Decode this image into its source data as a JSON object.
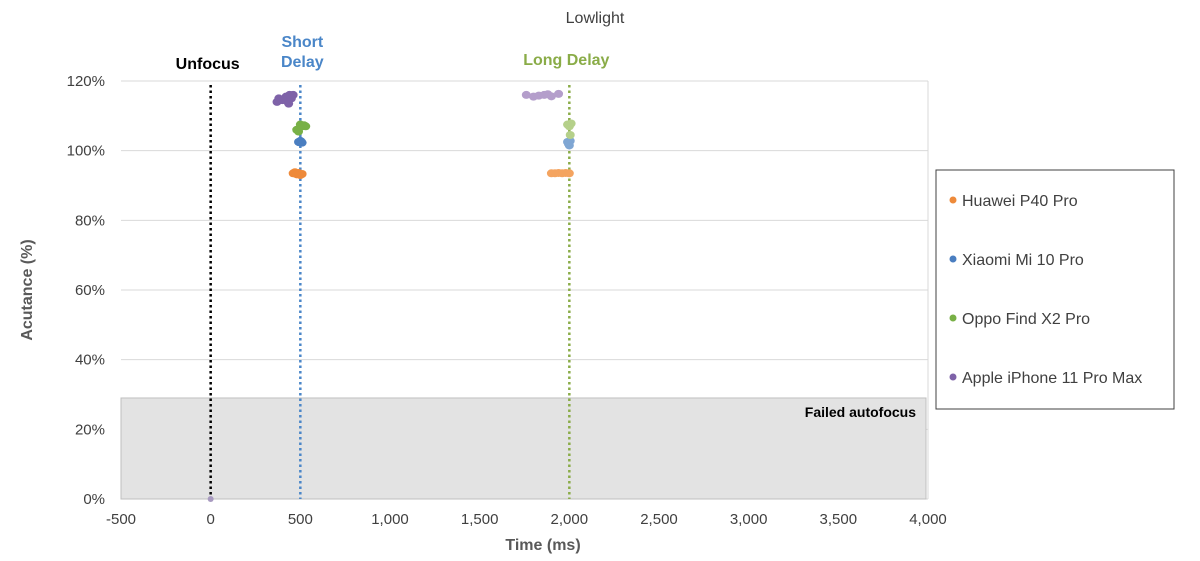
{
  "chart_data": {
    "type": "scatter",
    "title": "Lowlight",
    "xlabel": "Time (ms)",
    "ylabel": "Acutance (%)",
    "xlim": [
      -500,
      4000
    ],
    "ylim": [
      0,
      120
    ],
    "x_ticks": [
      -500,
      0,
      500,
      1000,
      1500,
      2000,
      2500,
      3000,
      3500,
      4000
    ],
    "x_tick_labels": [
      "-500",
      "0",
      "500",
      "1,000",
      "1,500",
      "2,000",
      "2,500",
      "3,000",
      "3,500",
      "4,000"
    ],
    "y_ticks": [
      0,
      20,
      40,
      60,
      80,
      100,
      120
    ],
    "y_tick_labels": [
      "0%",
      "20%",
      "40%",
      "60%",
      "80%",
      "100%",
      "120%"
    ],
    "grid": true,
    "legend_position": "right",
    "reference_lines": [
      {
        "label": "Unfocus",
        "x": 0,
        "color": "#000000"
      },
      {
        "label": "Short Delay",
        "x": 500,
        "color": "#4a86c8"
      },
      {
        "label": "Long Delay",
        "x": 2000,
        "color": "#8aac48"
      }
    ],
    "shaded_region": {
      "label": "Failed autofocus",
      "y_range": [
        0,
        29
      ],
      "color": "#e3e3e3"
    },
    "series": [
      {
        "name": "Huawei P40 Pro",
        "color": "#f4a460",
        "short_color": "#ee8a3a",
        "points": [
          {
            "x": 460,
            "y": 93.5
          },
          {
            "x": 470,
            "y": 93.8
          },
          {
            "x": 480,
            "y": 93.2
          },
          {
            "x": 490,
            "y": 93.6
          },
          {
            "x": 500,
            "y": 93.0
          },
          {
            "x": 510,
            "y": 93.3
          },
          {
            "x": 1900,
            "y": 93.5
          },
          {
            "x": 1920,
            "y": 93.5
          },
          {
            "x": 1940,
            "y": 93.6
          },
          {
            "x": 1960,
            "y": 93.5
          },
          {
            "x": 1980,
            "y": 93.6
          },
          {
            "x": 2000,
            "y": 93.5
          }
        ]
      },
      {
        "name": "Xiaomi Mi 10 Pro",
        "color": "#7fa6d3",
        "short_color": "#4a7ec0",
        "points": [
          {
            "x": 490,
            "y": 102.5
          },
          {
            "x": 500,
            "y": 102.8
          },
          {
            "x": 510,
            "y": 102.3
          },
          {
            "x": 505,
            "y": 102.6
          },
          {
            "x": 495,
            "y": 102.4
          },
          {
            "x": 1990,
            "y": 102.5
          },
          {
            "x": 2000,
            "y": 101.5
          },
          {
            "x": 2005,
            "y": 102.8
          },
          {
            "x": 1995,
            "y": 102.0
          }
        ]
      },
      {
        "name": "Oppo Find X2 Pro",
        "color": "#b5d08a",
        "short_color": "#78b046",
        "points": [
          {
            "x": 480,
            "y": 106.0
          },
          {
            "x": 500,
            "y": 107.5
          },
          {
            "x": 510,
            "y": 107.0
          },
          {
            "x": 520,
            "y": 107.3
          },
          {
            "x": 530,
            "y": 107.0
          },
          {
            "x": 490,
            "y": 105.5
          },
          {
            "x": 1990,
            "y": 107.5
          },
          {
            "x": 2000,
            "y": 107.0
          },
          {
            "x": 2010,
            "y": 107.8
          },
          {
            "x": 2005,
            "y": 104.5
          }
        ]
      },
      {
        "name": "Apple iPhone 11 Pro Max",
        "color": "#b49ecb",
        "short_color": "#7e62a8",
        "points": [
          {
            "x": 370,
            "y": 114.0
          },
          {
            "x": 380,
            "y": 115.0
          },
          {
            "x": 400,
            "y": 114.5
          },
          {
            "x": 420,
            "y": 115.5
          },
          {
            "x": 430,
            "y": 114.0
          },
          {
            "x": 440,
            "y": 116.0
          },
          {
            "x": 450,
            "y": 115.0
          },
          {
            "x": 460,
            "y": 116.0
          },
          {
            "x": 435,
            "y": 113.5
          },
          {
            "x": 1760,
            "y": 116.0
          },
          {
            "x": 1800,
            "y": 115.5
          },
          {
            "x": 1830,
            "y": 115.8
          },
          {
            "x": 1860,
            "y": 116.0
          },
          {
            "x": 1880,
            "y": 116.2
          },
          {
            "x": 1900,
            "y": 115.6
          },
          {
            "x": 1940,
            "y": 116.3
          }
        ]
      }
    ]
  }
}
